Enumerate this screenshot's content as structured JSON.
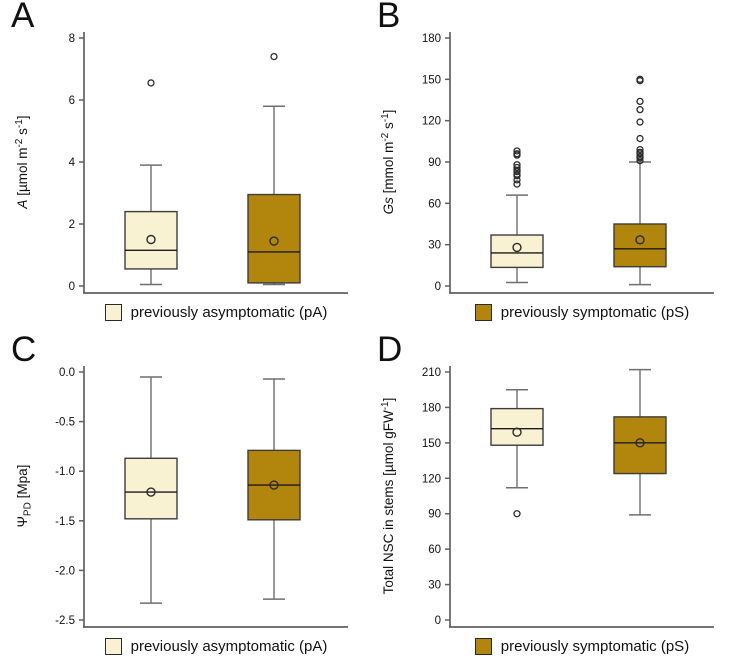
{
  "figure": {
    "background": "#ffffff"
  },
  "chart_data": {
    "type": "box",
    "title": "",
    "groups": {
      "pA": {
        "name": "previously asymptomatic (pA)",
        "color": "#F9F2D2"
      },
      "pS": {
        "name": "previously symptomatic (pS)",
        "color": "#B2860C"
      }
    },
    "style": {
      "box_stroke": "#3d3d3d",
      "median_color": "#1a1a1a",
      "whisker_color": "#6f6f6f",
      "axis_color": "#606060",
      "tick_label_color": "#111111",
      "marker_stroke": "#2b2b2b"
    },
    "panels": [
      {
        "id": "A",
        "label": "A",
        "ylabel": "A [µmol m⁻² s⁻¹]",
        "ylabel_segments": [
          {
            "t": "A",
            "italic": true
          },
          {
            "t": " [µmol m"
          },
          {
            "t": "-2",
            "sup": true
          },
          {
            "t": " s"
          },
          {
            "t": "-1",
            "sup": true
          },
          {
            "t": "]"
          }
        ],
        "ylim": [
          0,
          8
        ],
        "yticks": [
          0,
          2,
          4,
          6,
          8
        ],
        "ytick_labels": [
          "0",
          "2",
          "4",
          "6",
          "8"
        ],
        "boxes": [
          {
            "group": "pA",
            "whisker_low": 0.05,
            "q1": 0.55,
            "median": 1.15,
            "mean": 1.5,
            "q3": 2.4,
            "whisker_high": 3.9,
            "outliers": [
              6.55
            ]
          },
          {
            "group": "pS",
            "whisker_low": 0.05,
            "q1": 0.1,
            "median": 1.1,
            "mean": 1.45,
            "q3": 2.95,
            "whisker_high": 5.8,
            "outliers": [
              7.4
            ]
          }
        ],
        "legend": {
          "group": "pA",
          "label": "previously asymptomatic (pA)"
        }
      },
      {
        "id": "B",
        "label": "B",
        "ylabel": "Gs [mmol m⁻² s⁻¹]",
        "ylabel_segments": [
          {
            "t": "Gs",
            "italic": true
          },
          {
            "t": " [mmol m"
          },
          {
            "t": "-2",
            "sup": true
          },
          {
            "t": " s"
          },
          {
            "t": "-1",
            "sup": true
          },
          {
            "t": "]"
          }
        ],
        "ylim": [
          0,
          180
        ],
        "yticks": [
          0,
          30,
          60,
          90,
          120,
          150,
          180
        ],
        "ytick_labels": [
          "0",
          "30",
          "60",
          "90",
          "120",
          "150",
          "180"
        ],
        "boxes": [
          {
            "group": "pA",
            "whisker_low": 2.5,
            "q1": 13.5,
            "median": 24,
            "mean": 28,
            "q3": 37,
            "whisker_high": 66,
            "outliers": [
              74,
              77,
              80,
              81,
              83,
              84,
              86,
              88,
              95,
              96,
              98
            ]
          },
          {
            "group": "pS",
            "whisker_low": 1,
            "q1": 14,
            "median": 27,
            "mean": 33.5,
            "q3": 45,
            "whisker_high": 90,
            "outliers": [
              91,
              93,
              94,
              96,
              97,
              99,
              107,
              119,
              128,
              134,
              149,
              150
            ]
          }
        ],
        "legend": {
          "group": "pS",
          "label": "previously symptomatic (pS)"
        }
      },
      {
        "id": "C",
        "label": "C",
        "ylabel": "ΨPD [Mpa]",
        "ylabel_segments": [
          {
            "t": "Ψ"
          },
          {
            "t": "PD",
            "sub": true
          },
          {
            "t": " [Mpa]"
          }
        ],
        "ylim": [
          -2.5,
          0
        ],
        "yticks": [
          0,
          -0.5,
          -1,
          -1.5,
          -2,
          -2.5
        ],
        "ytick_labels": [
          "0.0",
          "-0.5",
          "-1.0",
          "-1.5",
          "-2.0",
          "-2.5"
        ],
        "boxes": [
          {
            "group": "pA",
            "whisker_low": -2.33,
            "q1": -1.48,
            "median": -1.21,
            "mean": -1.21,
            "q3": -0.87,
            "whisker_high": -0.05,
            "outliers": []
          },
          {
            "group": "pS",
            "whisker_low": -2.29,
            "q1": -1.49,
            "median": -1.14,
            "mean": -1.14,
            "q3": -0.79,
            "whisker_high": -0.07,
            "outliers": []
          }
        ],
        "legend": {
          "group": "pA",
          "label": "previously asymptomatic (pA)"
        }
      },
      {
        "id": "D",
        "label": "D",
        "ylabel": "Total NSC in stems [µmol gFW⁻¹]",
        "ylabel_segments": [
          {
            "t": "Total NSC in stems [µmol gFW"
          },
          {
            "t": "-1",
            "sup": true
          },
          {
            "t": "]"
          }
        ],
        "ylim": [
          0,
          210
        ],
        "yticks": [
          0,
          30,
          60,
          90,
          120,
          150,
          180,
          210
        ],
        "ytick_labels": [
          "0",
          "30",
          "60",
          "90",
          "120",
          "150",
          "180",
          "210"
        ],
        "boxes": [
          {
            "group": "pA",
            "whisker_low": 112,
            "q1": 148,
            "median": 162,
            "mean": 159,
            "q3": 179,
            "whisker_high": 195,
            "outliers": [
              90
            ]
          },
          {
            "group": "pS",
            "whisker_low": 89,
            "q1": 124,
            "median": 150,
            "mean": 150,
            "q3": 172,
            "whisker_high": 212,
            "outliers": []
          }
        ],
        "legend": {
          "group": "pS",
          "label": "previously symptomatic (pS)"
        }
      }
    ]
  }
}
